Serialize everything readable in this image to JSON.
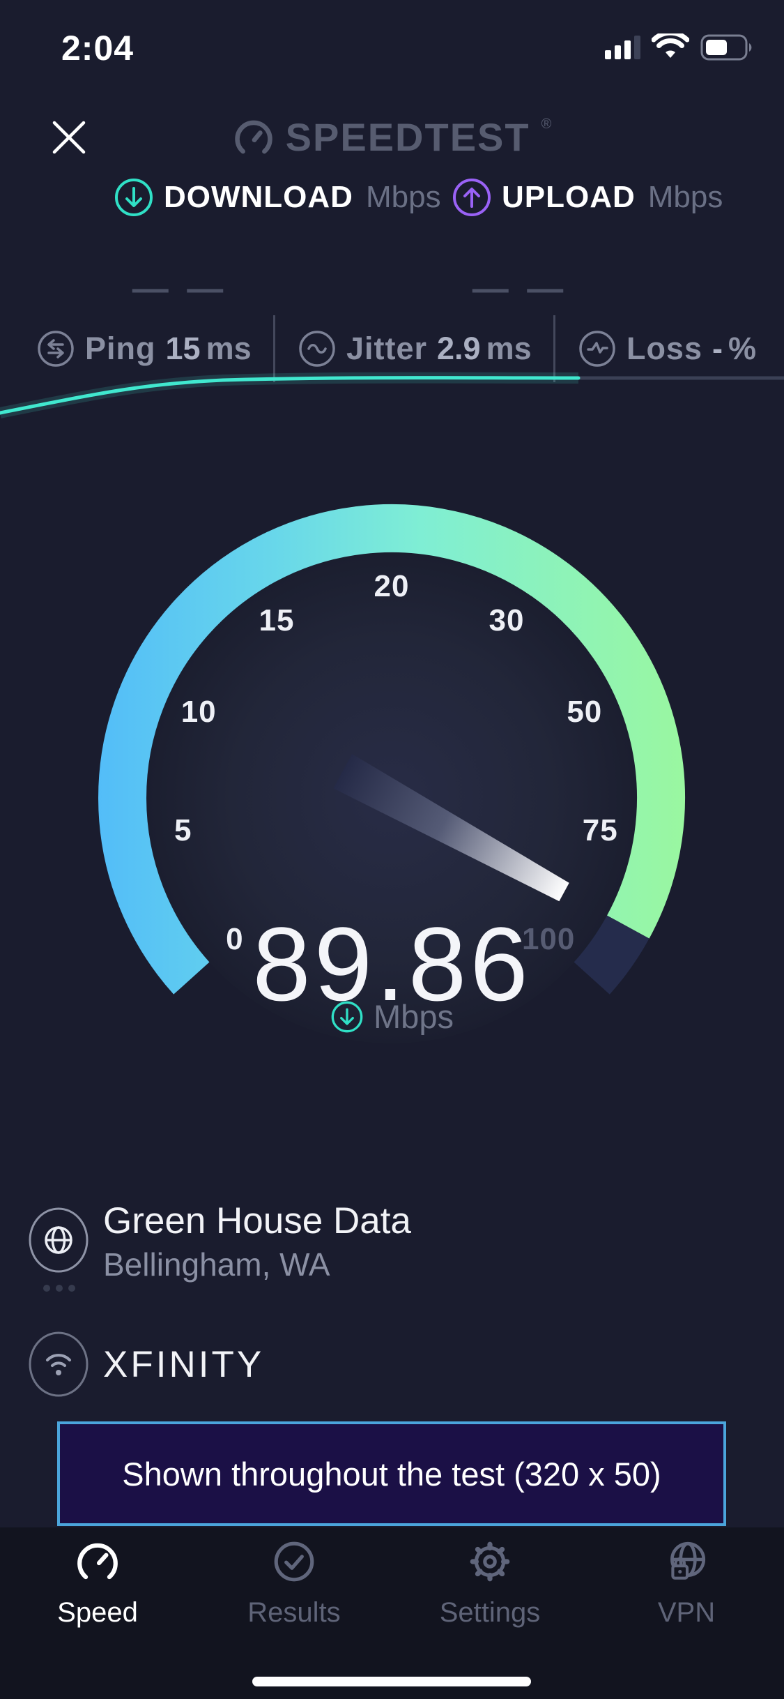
{
  "status_bar": {
    "time": "2:04",
    "cellular_bars_filled": 3,
    "cellular_bars_total": 4,
    "battery_fill_percent": 55
  },
  "header": {
    "logo_text": "SPEEDTEST",
    "logo_trademark": "®"
  },
  "metrics": {
    "download": {
      "label": "DOWNLOAD",
      "unit": "Mbps",
      "placeholder": "— —"
    },
    "upload": {
      "label": "UPLOAD",
      "unit": "Mbps",
      "placeholder": "— —"
    },
    "ping": {
      "label": "Ping",
      "value": "15",
      "unit": "ms"
    },
    "jitter": {
      "label": "Jitter",
      "value": "2.9",
      "unit": "ms"
    },
    "loss": {
      "label": "Loss",
      "value": "-",
      "unit": "%"
    }
  },
  "gauge": {
    "ticks": [
      "0",
      "5",
      "10",
      "15",
      "20",
      "30",
      "50",
      "75",
      "100"
    ],
    "tick_values": [
      0,
      5,
      10,
      15,
      20,
      30,
      50,
      75,
      100
    ],
    "value": "89.86",
    "unit": "Mbps"
  },
  "server": {
    "name": "Green House Data",
    "location": "Bellingham, WA"
  },
  "isp": {
    "name": "XFINITY"
  },
  "ad": {
    "text": "Shown throughout the test (320 x 50)"
  },
  "tab_bar": {
    "items": [
      {
        "label": "Speed",
        "active": true
      },
      {
        "label": "Results",
        "active": false
      },
      {
        "label": "Settings",
        "active": false
      },
      {
        "label": "VPN",
        "active": false
      }
    ]
  },
  "colors": {
    "background": "#1a1c2e",
    "accent_teal": "#30e0c6",
    "accent_purple": "#9a62f6",
    "gauge_blue": "#53bdf8",
    "gauge_cyan": "#7ceada",
    "gauge_green": "#9af7a0",
    "gauge_remainder": "#252c4c",
    "ad_border": "#4ba5dc",
    "ad_background": "#1b1046"
  }
}
